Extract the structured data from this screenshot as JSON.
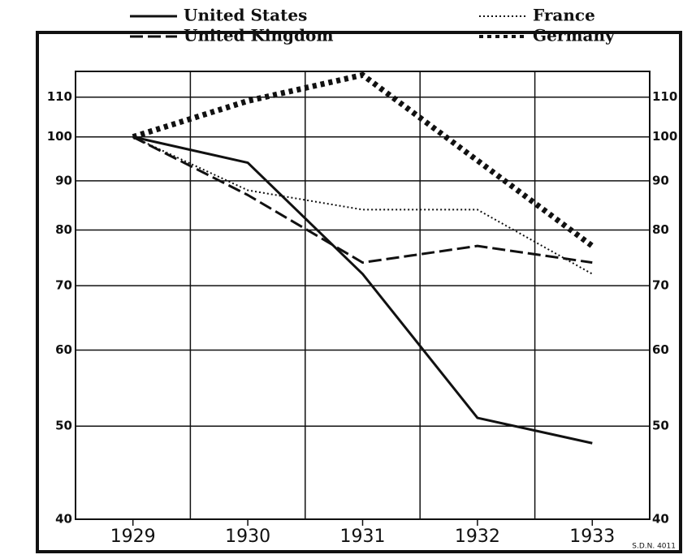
{
  "chart_data": {
    "type": "line",
    "categories": [
      "1929",
      "1930",
      "1931",
      "1932",
      "1933"
    ],
    "series": [
      {
        "name": "United States",
        "color": "#111111",
        "style": "solid",
        "values": [
          100,
          94,
          72,
          51,
          48
        ]
      },
      {
        "name": "United Kingdom",
        "color": "#111111",
        "style": "dashed",
        "values": [
          100,
          87,
          74,
          77,
          74
        ]
      },
      {
        "name": "France",
        "color": "#111111",
        "style": "dotted",
        "values": [
          100,
          88,
          84,
          84,
          72
        ]
      },
      {
        "name": "Germany",
        "color": "#111111",
        "style": "crosses",
        "values": [
          100,
          109,
          116,
          94.5,
          77
        ]
      }
    ],
    "ylim": [
      40,
      117
    ],
    "yticks": [
      40,
      50,
      60,
      70,
      80,
      90,
      100,
      110
    ],
    "log_scale": true,
    "grid": true,
    "annotation": "S.D.N. 4011"
  }
}
